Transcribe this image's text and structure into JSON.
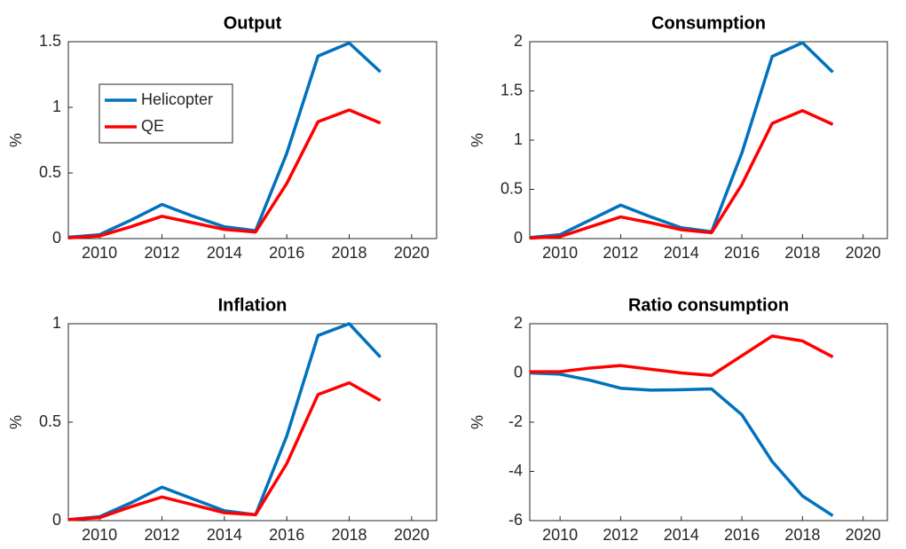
{
  "chart_data": [
    {
      "type": "line",
      "title": "Output",
      "ylabel": "%",
      "x": [
        2009,
        2010,
        2011,
        2012,
        2013,
        2014,
        2015,
        2016,
        2017,
        2018,
        2019
      ],
      "series": [
        {
          "name": "Helicopter",
          "color": "#0072bd",
          "values": [
            0.01,
            0.03,
            0.14,
            0.26,
            0.17,
            0.09,
            0.06,
            0.65,
            1.39,
            1.49,
            1.27
          ]
        },
        {
          "name": "QE",
          "color": "#ff0000",
          "values": [
            0.005,
            0.02,
            0.09,
            0.17,
            0.12,
            0.07,
            0.05,
            0.42,
            0.89,
            0.98,
            0.88
          ]
        }
      ],
      "xlim": [
        2009,
        2020.8
      ],
      "xticks": [
        2010,
        2012,
        2014,
        2016,
        2018,
        2020
      ],
      "ylim": [
        0,
        1.5
      ],
      "yticks": [
        0,
        0.5,
        1,
        1.5
      ],
      "legend": "northwest"
    },
    {
      "type": "line",
      "title": "Consumption",
      "ylabel": "%",
      "x": [
        2009,
        2010,
        2011,
        2012,
        2013,
        2014,
        2015,
        2016,
        2017,
        2018,
        2019
      ],
      "series": [
        {
          "color": "#0072bd",
          "values": [
            0.01,
            0.04,
            0.19,
            0.34,
            0.22,
            0.11,
            0.07,
            0.87,
            1.85,
            1.99,
            1.69
          ]
        },
        {
          "color": "#ff0000",
          "values": [
            0.005,
            0.02,
            0.12,
            0.22,
            0.16,
            0.09,
            0.06,
            0.55,
            1.17,
            1.3,
            1.16
          ]
        }
      ],
      "xlim": [
        2009,
        2020.8
      ],
      "xticks": [
        2010,
        2012,
        2014,
        2016,
        2018,
        2020
      ],
      "ylim": [
        0,
        2
      ],
      "yticks": [
        0,
        0.5,
        1,
        1.5,
        2
      ]
    },
    {
      "type": "line",
      "title": "Inflation",
      "ylabel": "%",
      "x": [
        2009,
        2010,
        2011,
        2012,
        2013,
        2014,
        2015,
        2016,
        2017,
        2018,
        2019
      ],
      "series": [
        {
          "color": "#0072bd",
          "values": [
            0.005,
            0.02,
            0.09,
            0.17,
            0.11,
            0.05,
            0.03,
            0.43,
            0.94,
            1.0,
            0.83
          ]
        },
        {
          "color": "#ff0000",
          "values": [
            0.005,
            0.015,
            0.07,
            0.12,
            0.08,
            0.04,
            0.03,
            0.29,
            0.64,
            0.7,
            0.61
          ]
        }
      ],
      "xlim": [
        2009,
        2020.8
      ],
      "xticks": [
        2010,
        2012,
        2014,
        2016,
        2018,
        2020
      ],
      "ylim": [
        0,
        1
      ],
      "yticks": [
        0,
        0.5,
        1
      ]
    },
    {
      "type": "line",
      "title": "Ratio consumption",
      "ylabel": "%",
      "x": [
        2009,
        2010,
        2011,
        2012,
        2013,
        2014,
        2015,
        2016,
        2017,
        2018,
        2019
      ],
      "series": [
        {
          "color": "#0072bd",
          "values": [
            0,
            -0.05,
            -0.3,
            -0.62,
            -0.7,
            -0.68,
            -0.65,
            -1.7,
            -3.6,
            -5.0,
            -5.8
          ]
        },
        {
          "color": "#ff0000",
          "values": [
            0.05,
            0.05,
            0.2,
            0.3,
            0.15,
            0,
            -0.1,
            0.7,
            1.5,
            1.3,
            0.65
          ]
        }
      ],
      "xlim": [
        2009,
        2020.8
      ],
      "xticks": [
        2010,
        2012,
        2014,
        2016,
        2018,
        2020
      ],
      "ylim": [
        -6,
        2
      ],
      "yticks": [
        -6,
        -4,
        -2,
        0,
        2
      ]
    }
  ]
}
